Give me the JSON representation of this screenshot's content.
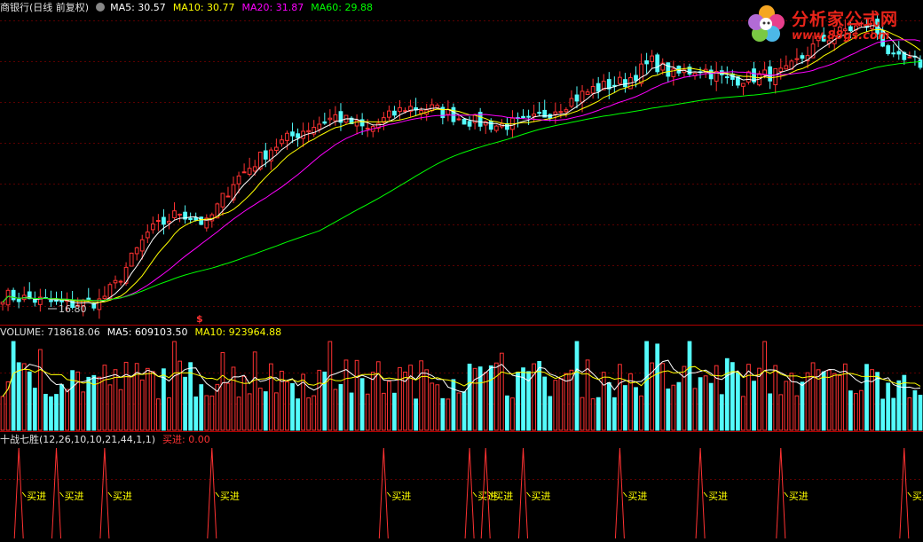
{
  "logo": {
    "brand": "分析家公式网",
    "url": "www.88gs.com"
  },
  "price_panel": {
    "title": "商银行(日线 前复权)",
    "ma5_label": "MA5: 30.57",
    "ma10_label": "MA10: 30.77",
    "ma20_label": "MA20: 31.87",
    "ma60_label": "MA60: 29.88",
    "low_mark": "16.80",
    "colors": {
      "ma5": "#ffffff",
      "ma10": "#ffff00",
      "ma20": "#ff00ff",
      "ma60": "#00ff00",
      "up": "#ff3232",
      "down": "#54fcfc"
    }
  },
  "volume_panel": {
    "volume_label": "VOLUME: 718618.06",
    "ma5_label": "MA5: 609103.50",
    "ma10_label": "MA10: 923964.88"
  },
  "indicator_panel": {
    "title": "十战七胜(12,26,10,10,21,44,1,1)",
    "value_label": "买进: 0.00",
    "signal_text": "买进"
  },
  "chart_data": {
    "type": "candlestick",
    "series_count": 172,
    "price_axis_range": [
      16.0,
      36.0
    ],
    "ma_lines": [
      "MA5",
      "MA10",
      "MA20",
      "MA60"
    ],
    "anchors": [
      [
        0,
        17.7
      ],
      [
        12,
        17.1
      ],
      [
        18,
        17.3
      ],
      [
        21,
        18.4
      ],
      [
        27,
        21.8
      ],
      [
        33,
        23.2
      ],
      [
        38,
        22.4
      ],
      [
        43,
        25.2
      ],
      [
        50,
        27.4
      ],
      [
        56,
        28.6
      ],
      [
        62,
        29.5
      ],
      [
        68,
        28.6
      ],
      [
        75,
        30.1
      ],
      [
        80,
        30.0
      ],
      [
        86,
        29.3
      ],
      [
        92,
        28.9
      ],
      [
        98,
        29.1
      ],
      [
        104,
        30.2
      ],
      [
        110,
        31.3
      ],
      [
        116,
        31.8
      ],
      [
        121,
        33.1
      ],
      [
        125,
        32.2
      ],
      [
        130,
        32.7
      ],
      [
        135,
        31.9
      ],
      [
        140,
        32.1
      ],
      [
        146,
        32.4
      ],
      [
        152,
        34.4
      ],
      [
        157,
        35.2
      ],
      [
        162,
        35.6
      ],
      [
        166,
        33.2
      ],
      [
        171,
        33.0
      ]
    ],
    "buy_signals_at": [
      3,
      10,
      19,
      39,
      71,
      87,
      90,
      97,
      115,
      130,
      145,
      168
    ]
  }
}
